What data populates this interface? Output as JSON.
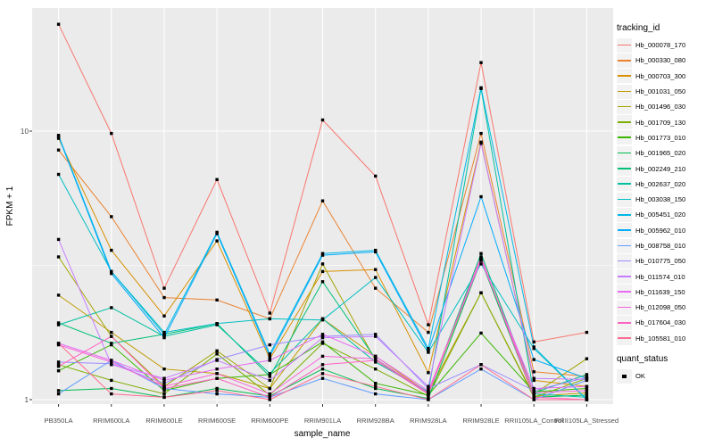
{
  "figure": {
    "background": "#FFFFFF",
    "panel_background": "#EBEBEB",
    "gridline_color": "#FFFFFF",
    "tick_label_color": "#4D4D4D",
    "axis_title_color": "#000000"
  },
  "chart_data": {
    "type": "line",
    "title": "",
    "xlabel": "sample_name",
    "ylabel": "FPKM + 1",
    "yscale": "log10",
    "ylim": [
      0.95,
      29
    ],
    "yticks": [
      10,
      1
    ],
    "ytick_labels": [
      "10",
      "1"
    ],
    "grid": "on",
    "legend_position": "right",
    "legend_title": "tracking_id",
    "quant_legend_title": "quant_status",
    "quant_status_label": "OK",
    "point_marker": "black-filled-square",
    "x_categories": [
      "PB350LA",
      "RRIM600LA",
      "RRIM600LE",
      "RRIM600SE",
      "RRIM600PE",
      "RRIM901LA",
      "RRIM928BA",
      "RRIM928LA",
      "RRIM928LE",
      "RRII105LA_Control",
      "RRII105LA_Stressed"
    ],
    "series": [
      {
        "name": "Hb_000078_170",
        "color": "#F8766D",
        "values": [
          25.0,
          9.8,
          2.6,
          6.6,
          2.1,
          11.0,
          6.8,
          1.9,
          18.0,
          1.64,
          1.78
        ]
      },
      {
        "name": "Hb_000330_080",
        "color": "#EA8331",
        "values": [
          8.5,
          4.8,
          2.4,
          2.35,
          2.0,
          5.5,
          2.6,
          1.78,
          9.8,
          1.27,
          1.22
        ]
      },
      {
        "name": "Hb_000703_300",
        "color": "#D89000",
        "values": [
          9.4,
          3.6,
          2.05,
          3.9,
          1.42,
          3.0,
          3.05,
          1.26,
          9.1,
          1.18,
          1.12
        ]
      },
      {
        "name": "Hb_001031_050",
        "color": "#C09B00",
        "values": [
          2.45,
          1.78,
          1.3,
          1.25,
          1.1,
          2.0,
          1.45,
          1.06,
          2.5,
          1.03,
          1.06
        ]
      },
      {
        "name": "Hb_001496_030",
        "color": "#A3A500",
        "values": [
          3.4,
          1.72,
          1.12,
          1.52,
          1.1,
          3.2,
          1.4,
          1.05,
          3.35,
          1.05,
          1.42
        ]
      },
      {
        "name": "Hb_001709_130",
        "color": "#7CAE00",
        "values": [
          1.35,
          1.18,
          1.05,
          1.48,
          1.04,
          1.62,
          1.3,
          1.03,
          2.5,
          1.02,
          1.2
        ]
      },
      {
        "name": "Hb_001773_010",
        "color": "#39B600",
        "values": [
          1.28,
          1.6,
          1.08,
          1.2,
          1.24,
          1.64,
          1.15,
          1.04,
          1.77,
          1.07,
          1.1
        ]
      },
      {
        "name": "Hb_001965_020",
        "color": "#00BB4E",
        "values": [
          1.08,
          1.1,
          1.02,
          1.1,
          1.03,
          1.3,
          1.1,
          1.01,
          3.3,
          1.02,
          1.04
        ]
      },
      {
        "name": "Hb_002249_210",
        "color": "#00C078",
        "values": [
          1.93,
          1.62,
          1.75,
          1.92,
          1.22,
          2.75,
          1.42,
          1.05,
          3.5,
          1.06,
          1.24
        ]
      },
      {
        "name": "Hb_002637_020",
        "color": "#00C19F",
        "values": [
          1.9,
          2.2,
          1.72,
          1.9,
          1.25,
          2.0,
          1.38,
          1.07,
          14.4,
          1.05,
          1.02
        ]
      },
      {
        "name": "Hb_003038_150",
        "color": "#00BFC4",
        "values": [
          6.9,
          3.0,
          1.78,
          1.92,
          2.0,
          1.98,
          2.85,
          1.5,
          3.2,
          1.55,
          1.0
        ]
      },
      {
        "name": "Hb_005451_020",
        "color": "#00B8E5",
        "values": [
          9.65,
          3.0,
          1.75,
          4.2,
          1.48,
          3.5,
          3.6,
          1.55,
          14.5,
          1.57,
          1.0
        ]
      },
      {
        "name": "Hb_005962_010",
        "color": "#00ACFC",
        "values": [
          9.55,
          2.95,
          1.7,
          4.15,
          1.45,
          3.45,
          3.55,
          1.52,
          5.7,
          1.41,
          1.2
        ]
      },
      {
        "name": "Hb_008758_010",
        "color": "#619CFF",
        "values": [
          1.05,
          1.4,
          1.1,
          1.05,
          1.02,
          1.2,
          1.05,
          1.0,
          1.3,
          1.0,
          1.18
        ]
      },
      {
        "name": "Hb_010775_050",
        "color": "#9C8DFF",
        "values": [
          1.38,
          1.36,
          1.15,
          1.41,
          1.6,
          1.72,
          1.75,
          1.1,
          1.35,
          1.08,
          1.21
        ]
      },
      {
        "name": "Hb_011574_010",
        "color": "#C77CFF",
        "values": [
          3.95,
          1.35,
          1.2,
          1.4,
          1.18,
          1.7,
          1.72,
          1.12,
          9.0,
          1.2,
          1.19
        ]
      },
      {
        "name": "Hb_011639_150",
        "color": "#E76BF3",
        "values": [
          1.62,
          1.4,
          1.18,
          1.3,
          1.4,
          1.75,
          1.45,
          1.08,
          3.3,
          1.1,
          1.12
        ]
      },
      {
        "name": "Hb_012098_050",
        "color": "#FA62DB",
        "values": [
          1.6,
          1.38,
          1.12,
          1.25,
          1.05,
          1.45,
          1.42,
          1.06,
          3.35,
          1.06,
          1.08
        ]
      },
      {
        "name": "Hb_017604_030",
        "color": "#FF61C3",
        "values": [
          1.33,
          1.72,
          1.1,
          1.2,
          1.02,
          1.35,
          1.4,
          1.05,
          3.4,
          1.02,
          1.0
        ]
      },
      {
        "name": "Hb_105581_010",
        "color": "#FF6C91",
        "values": [
          1.62,
          1.05,
          1.02,
          1.08,
          1.0,
          1.25,
          1.12,
          1.0,
          1.35,
          1.0,
          1.0
        ]
      }
    ]
  }
}
